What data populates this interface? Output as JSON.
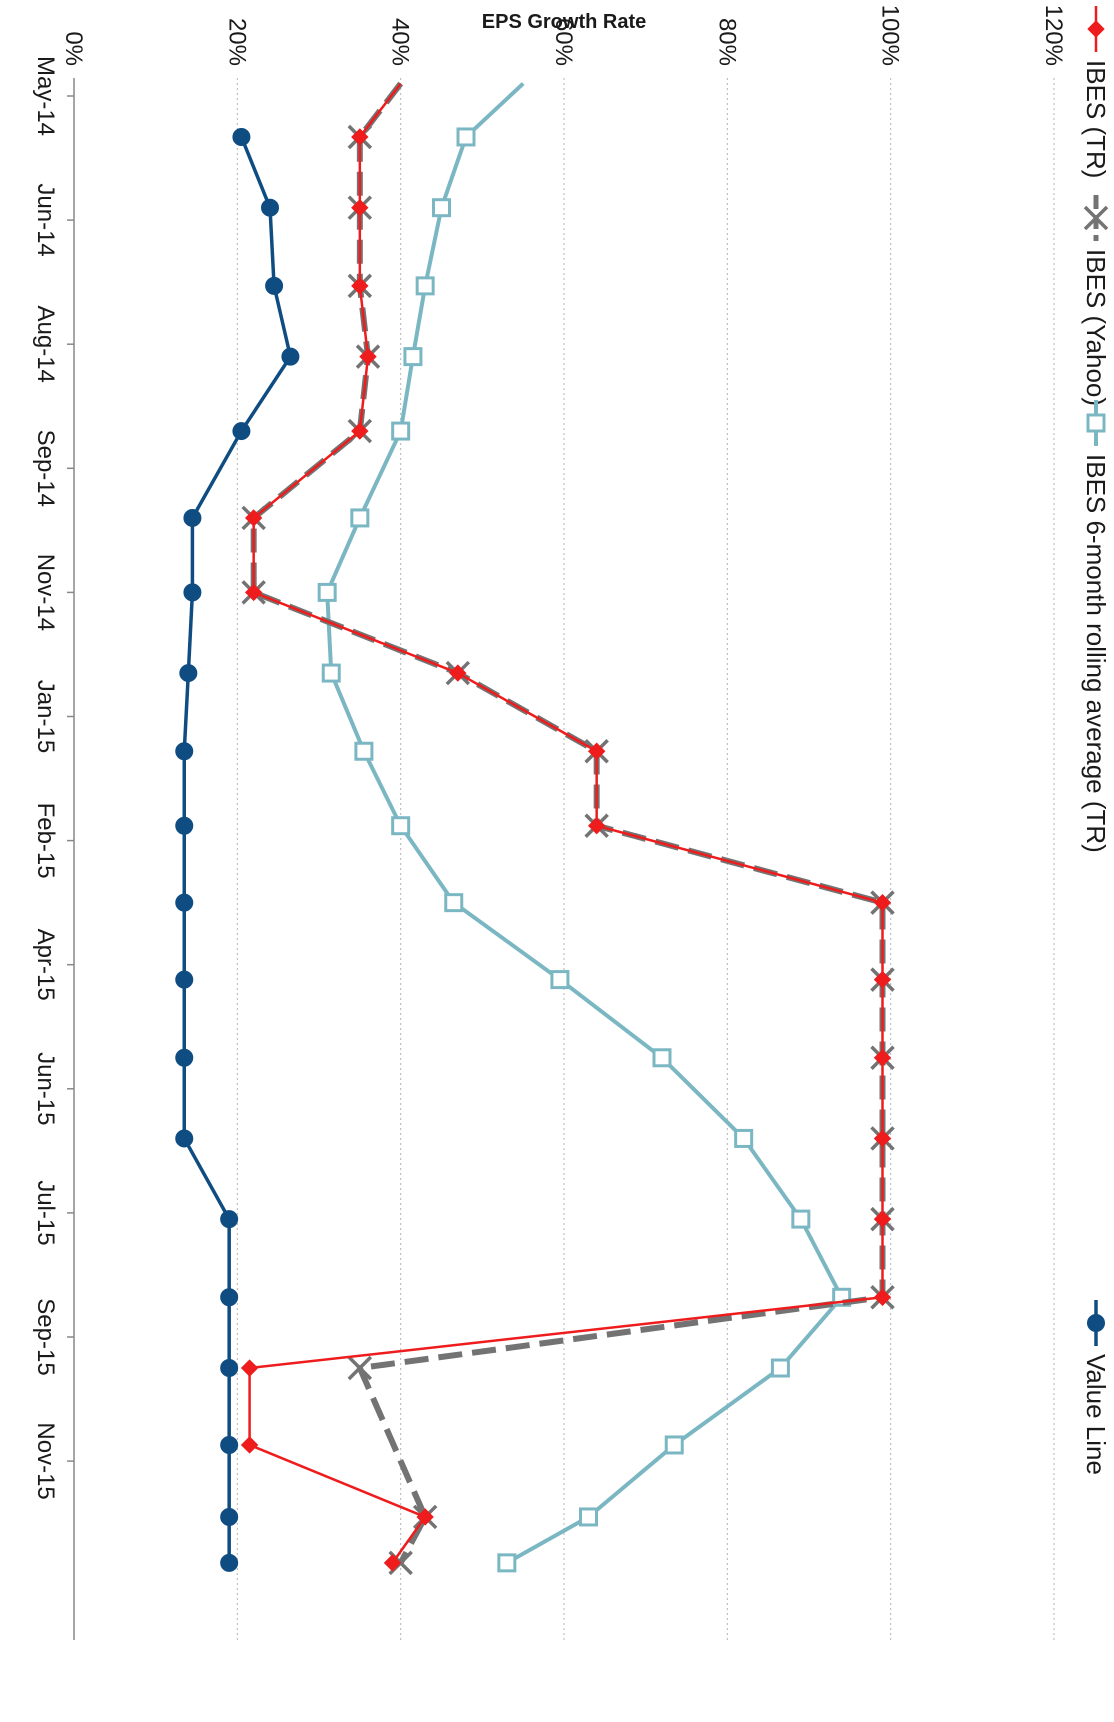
{
  "chart_data": {
    "type": "line",
    "title": "",
    "xlabel": "",
    "ylabel": "EPS Growth Rate",
    "ylim": [
      0,
      120
    ],
    "yticks": [
      "0%",
      "20%",
      "40%",
      "60%",
      "80%",
      "100%",
      "120%"
    ],
    "ytick_values": [
      0,
      20,
      40,
      60,
      80,
      100,
      120
    ],
    "xlim": [
      0,
      19
    ],
    "x_ticks": [
      {
        "label": "May-14",
        "pos": 0
      },
      {
        "label": "Jun-14",
        "pos": 1
      },
      {
        "label": "Aug-14",
        "pos": 2
      },
      {
        "label": "Sep-14",
        "pos": 3
      },
      {
        "label": "Nov-14",
        "pos": 4
      },
      {
        "label": "Jan-15",
        "pos": 5
      },
      {
        "label": "Feb-15",
        "pos": 6
      },
      {
        "label": "Apr-15",
        "pos": 7
      },
      {
        "label": "Jun-15",
        "pos": 8
      },
      {
        "label": "Jul-15",
        "pos": 9
      },
      {
        "label": "Sep-15",
        "pos": 10
      },
      {
        "label": "Nov-15",
        "pos": 11
      }
    ],
    "grid": "horizontal dotted",
    "legend_placement": "top",
    "series": [
      {
        "name": "IBES (TR)",
        "color": "#ee1c1c",
        "marker": "diamond",
        "dash": "solid",
        "x": [
          -0.1,
          0.33,
          0.9,
          1.53,
          2.1,
          2.7,
          3.4,
          4.0,
          4.65,
          5.28,
          5.88,
          6.5,
          7.12,
          7.75,
          8.4,
          9.05,
          9.68,
          10.25,
          10.87,
          11.45,
          11.82
        ],
        "y": [
          40,
          35,
          35,
          35,
          36,
          35,
          22,
          22,
          47,
          64,
          64,
          99,
          99,
          99,
          99,
          99,
          99,
          21.5,
          21.5,
          43,
          39
        ]
      },
      {
        "name": "IBES (Yahoo)",
        "color": "#737373",
        "marker": "x",
        "dash": "dashed",
        "x": [
          -0.1,
          0.33,
          0.9,
          1.53,
          2.1,
          2.7,
          3.4,
          4.0,
          4.65,
          5.28,
          5.88,
          6.5,
          7.12,
          7.75,
          8.4,
          9.05,
          9.68,
          10.25,
          11.45,
          11.82
        ],
        "y": [
          40,
          35,
          35,
          35,
          36,
          35,
          22,
          22,
          47,
          64,
          64,
          99,
          99,
          99,
          99,
          99,
          99,
          35,
          43,
          40
        ]
      },
      {
        "name": "IBES 6-month rolling average (TR)",
        "color": "#7bb7c3",
        "marker": "square",
        "dash": "solid",
        "x": [
          -0.1,
          0.33,
          0.9,
          1.53,
          2.1,
          2.7,
          3.4,
          4.0,
          4.65,
          5.28,
          5.88,
          6.5,
          7.12,
          7.75,
          8.4,
          9.05,
          9.68,
          10.25,
          10.87,
          11.45,
          11.82
        ],
        "y": [
          55,
          48,
          45,
          43,
          41.5,
          40,
          35,
          31,
          31.5,
          35.5,
          40,
          46.5,
          59.5,
          72,
          82,
          89,
          94,
          86.5,
          73.5,
          63,
          53
        ]
      },
      {
        "name": "Value Line",
        "color": "#0f4c81",
        "marker": "circle",
        "dash": "solid",
        "x": [
          0.33,
          0.9,
          1.53,
          2.1,
          2.7,
          3.4,
          4.0,
          4.65,
          5.28,
          5.88,
          6.5,
          7.12,
          7.75,
          8.4,
          9.05,
          9.68,
          10.25,
          10.87,
          11.45,
          11.82
        ],
        "y": [
          20.5,
          24,
          24.5,
          26.5,
          20.5,
          14.5,
          14.5,
          14,
          13.5,
          13.5,
          13.5,
          13.5,
          13.5,
          13.5,
          19,
          19,
          19,
          19,
          19,
          19
        ]
      }
    ]
  }
}
